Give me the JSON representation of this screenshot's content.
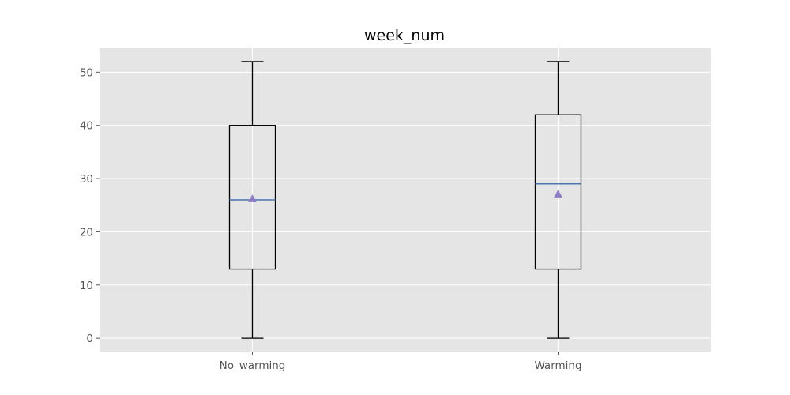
{
  "chart_data": {
    "type": "box",
    "title": "week_num",
    "xlabel": "",
    "ylabel": "",
    "categories": [
      "No_warming",
      "Warming"
    ],
    "ylim": [
      -2.5,
      54.5
    ],
    "yticks": [
      0,
      10,
      20,
      30,
      40,
      50
    ],
    "grid": true,
    "boxes": [
      {
        "name": "No_warming",
        "whisker_low": 0,
        "q1": 13,
        "median": 26,
        "q3": 40,
        "whisker_high": 52,
        "mean": 26.2
      },
      {
        "name": "Warming",
        "whisker_low": 0,
        "q1": 13,
        "median": 29,
        "q3": 42,
        "whisker_high": 52,
        "mean": 27.1
      }
    ],
    "colors": {
      "plot_background": "#e5e5e5",
      "grid": "#ffffff",
      "box": "#000000",
      "median": "#4c72b0",
      "mean_marker": "#8e7cc3",
      "tick_label": "#555555"
    }
  }
}
